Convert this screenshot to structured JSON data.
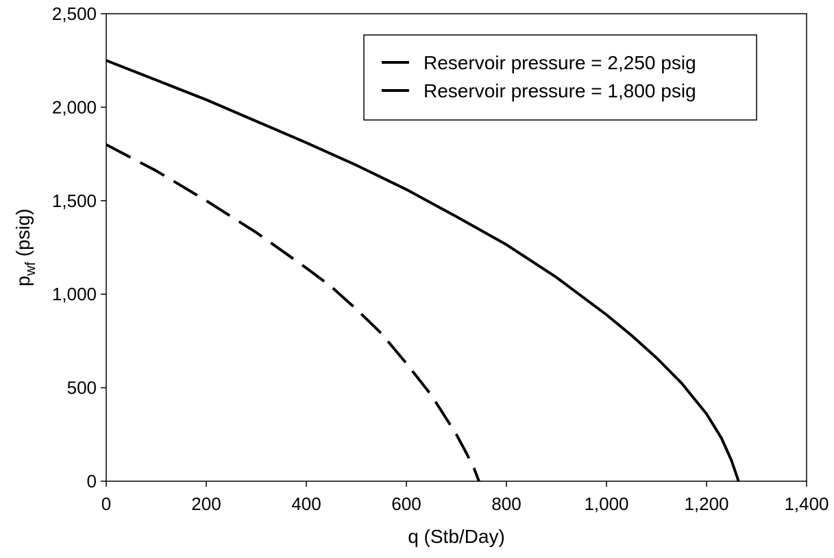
{
  "chart_data": {
    "type": "line",
    "xlabel": "q (Stb/Day)",
    "ylabel": {
      "base": "p",
      "subscript": "wf",
      "suffix": " (psig)"
    },
    "xlim": [
      0,
      1400
    ],
    "ylim": [
      0,
      2500
    ],
    "xticks": [
      0,
      200,
      400,
      600,
      800,
      1000,
      1200,
      1400
    ],
    "yticks": [
      0,
      500,
      1000,
      1500,
      2000,
      2500
    ],
    "xtick_labels": [
      "0",
      "200",
      "400",
      "600",
      "800",
      "1,000",
      "1,200",
      "1,400"
    ],
    "ytick_labels": [
      "0",
      "500",
      "1,000",
      "1,500",
      "2,000",
      "2,500"
    ],
    "grid": false,
    "legend_position": "top-right",
    "series": [
      {
        "name": "Reservoir pressure = 2,250 psig",
        "style": "solid",
        "x": [
          0,
          200,
          400,
          500,
          600,
          700,
          800,
          900,
          1000,
          1050,
          1100,
          1150,
          1200,
          1230,
          1250,
          1264
        ],
        "y": [
          2250,
          2040,
          1810,
          1690,
          1560,
          1415,
          1265,
          1090,
          890,
          780,
          660,
          525,
          360,
          230,
          110,
          0
        ]
      },
      {
        "name": "Reservoir pressure = 1,800 psig",
        "style": "dashed",
        "x": [
          0,
          100,
          200,
          300,
          400,
          450,
          500,
          550,
          600,
          650,
          700,
          720,
          735,
          745
        ],
        "y": [
          1800,
          1660,
          1500,
          1330,
          1140,
          1040,
          920,
          790,
          630,
          460,
          250,
          150,
          70,
          0
        ]
      }
    ]
  }
}
